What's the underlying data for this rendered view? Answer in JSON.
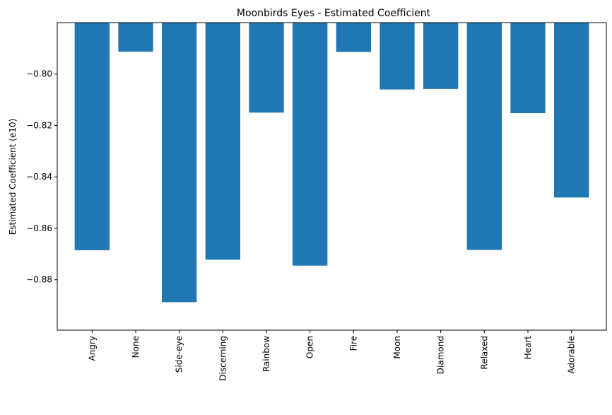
{
  "chart_data": {
    "type": "bar",
    "title": "Moonbirds Eyes - Estimated Coefficient",
    "xlabel": "",
    "ylabel": "Estimated Coefficient (e10)",
    "categories": [
      "Angry",
      "None",
      "Side-eye",
      "Discerning",
      "Rainbow",
      "Open",
      "Fire",
      "Moon",
      "Diamond",
      "Relaxed",
      "Heart",
      "Adorable"
    ],
    "values": [
      -0.8685,
      -0.7913,
      -0.8887,
      -0.8722,
      -0.815,
      -0.8745,
      -0.7914,
      -0.806,
      -0.8058,
      -0.8684,
      -0.8152,
      -0.848
    ],
    "ylim": [
      -0.8996,
      -0.78
    ],
    "yticks": [
      -0.88,
      -0.86,
      -0.84,
      -0.82,
      -0.8
    ],
    "ytick_labels": [
      "−0.88",
      "−0.86",
      "−0.84",
      "−0.82",
      "−0.80"
    ],
    "bar_color": "#1f77b4",
    "grid": false,
    "legend": "none"
  }
}
